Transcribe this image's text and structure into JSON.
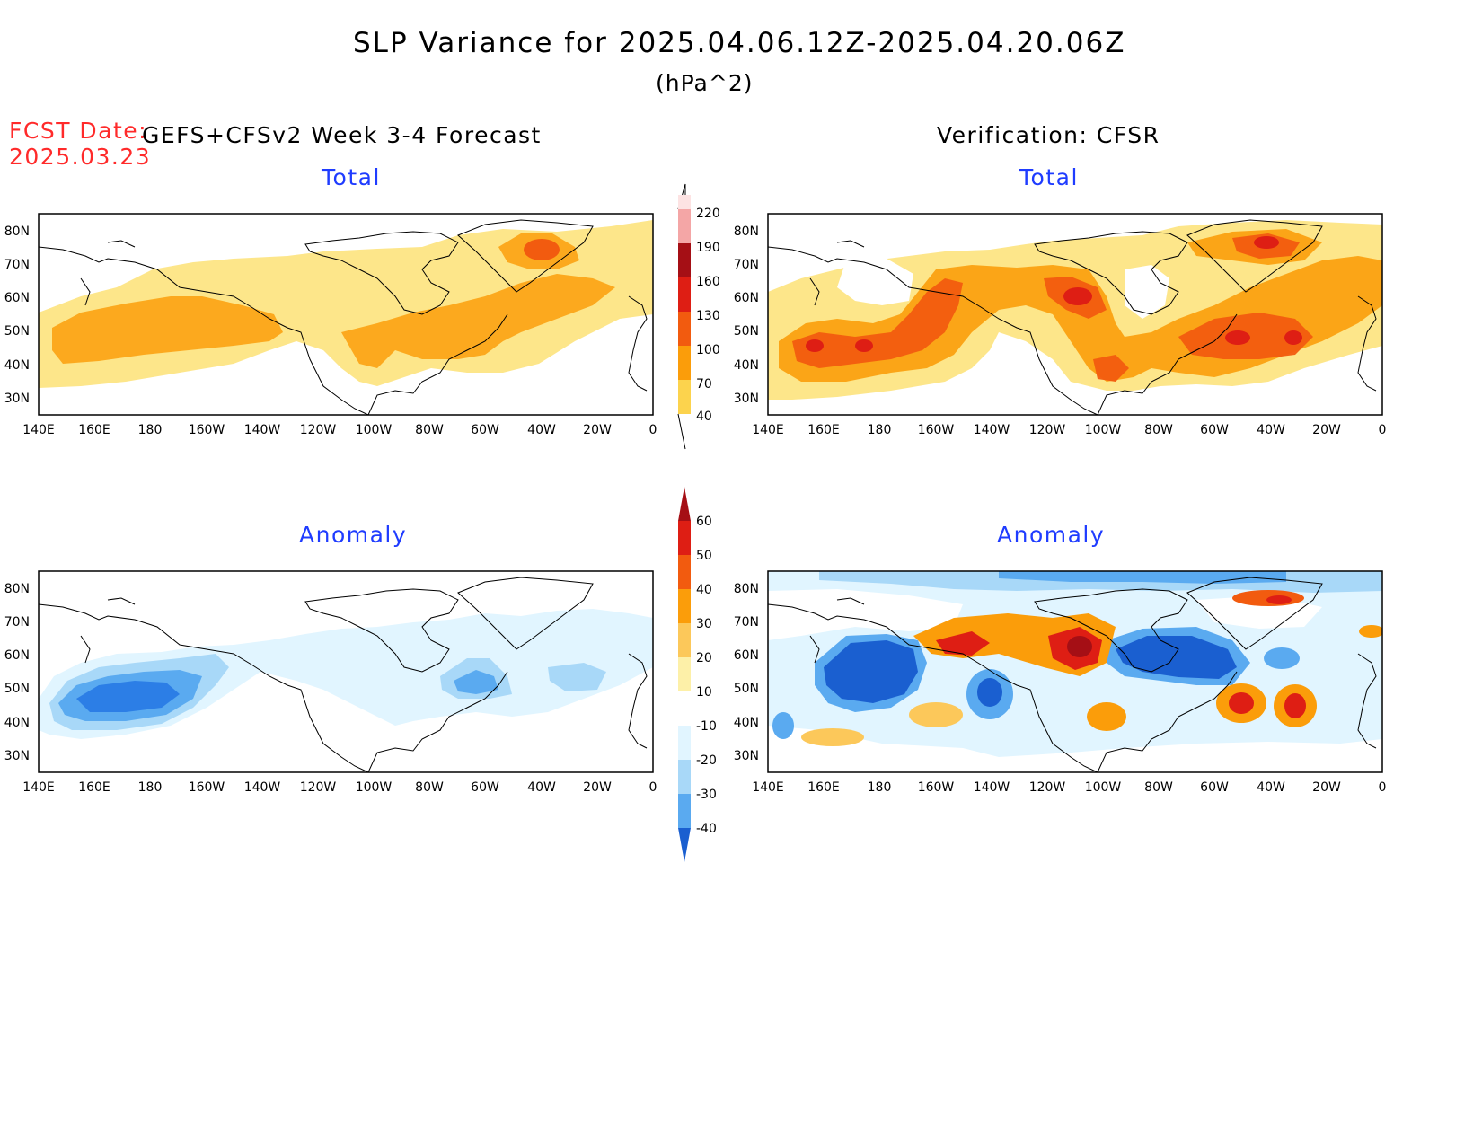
{
  "header": {
    "title": "SLP Variance for 2025.04.06.12Z-2025.04.20.06Z",
    "units": "(hPa^2)",
    "fcst_label": "FCST Date:",
    "fcst_date": "2025.03.23",
    "left_model": "GEFS+CFSv2 Week 3-4 Forecast",
    "right_model": "Verification: CFSR"
  },
  "panels": {
    "top_left_title": "Total",
    "top_right_title": "Total",
    "bottom_left_title": "Anomaly",
    "bottom_right_title": "Anomaly"
  },
  "axes": {
    "lat_labels": [
      "80N",
      "70N",
      "60N",
      "50N",
      "40N",
      "30N"
    ],
    "lon_labels": [
      "140E",
      "160E",
      "180",
      "160W",
      "140W",
      "120W",
      "100W",
      "80W",
      "60W",
      "40W",
      "20W",
      "0"
    ]
  },
  "colorbars": {
    "total": {
      "labels": [
        "220",
        "190",
        "160",
        "130",
        "100",
        "70",
        "40"
      ],
      "colors": [
        "#fde3e3",
        "#f4a6a6",
        "#a50f15",
        "#de1e14",
        "#f25b0f",
        "#fb9d0a",
        "#fcd34d",
        "#fde68a"
      ]
    },
    "anomaly": {
      "labels": [
        "60",
        "50",
        "40",
        "30",
        "20",
        "10",
        "-10",
        "-20",
        "-30",
        "-40"
      ],
      "colors": [
        "#a50f15",
        "#de1e14",
        "#f25b0f",
        "#fb9d0a",
        "#fcc85a",
        "#fdf0a8",
        "#ffffff",
        "#e1f5ff",
        "#a8d8f8",
        "#5aaaf0",
        "#2c7ee6",
        "#1a5fd0"
      ]
    }
  }
}
